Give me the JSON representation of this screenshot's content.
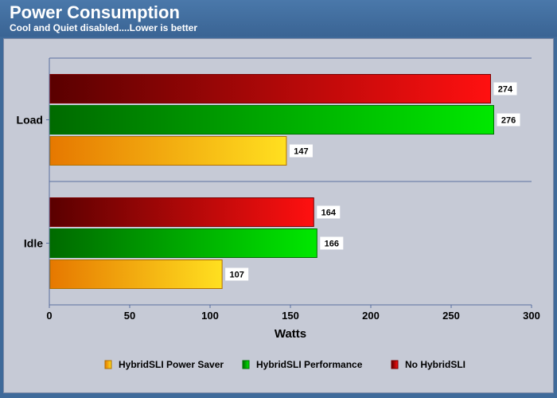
{
  "header": {
    "title": "Power Consumption",
    "subtitle": "Cool and Quiet disabled....Lower is better"
  },
  "colors": {
    "background": "#3f6a9a",
    "panel": "#c6cad6",
    "no_hybridsli": "#e00000",
    "hybridsli_performance": "#00c000",
    "hybridsli_power_saver": "#f0a000"
  },
  "chart_data": {
    "type": "bar",
    "orientation": "horizontal",
    "title": "Power Consumption",
    "subtitle": "Cool and Quiet disabled....Lower is better",
    "xlabel": "Watts",
    "ylabel": "",
    "xlim": [
      0,
      300
    ],
    "xticks": [
      0,
      50,
      100,
      150,
      200,
      250,
      300
    ],
    "categories": [
      "Load",
      "Idle"
    ],
    "series": [
      {
        "name": "No HybridSLI",
        "values": [
          274,
          164
        ],
        "color": "red"
      },
      {
        "name": "HybridSLI Performance",
        "values": [
          276,
          166
        ],
        "color": "green"
      },
      {
        "name": "HybridSLI Power Saver",
        "values": [
          147,
          107
        ],
        "color": "orange"
      }
    ],
    "legend_order": [
      "HybridSLI Power Saver",
      "HybridSLI Performance",
      "No HybridSLI"
    ],
    "legend_position": "bottom",
    "grid": true
  }
}
